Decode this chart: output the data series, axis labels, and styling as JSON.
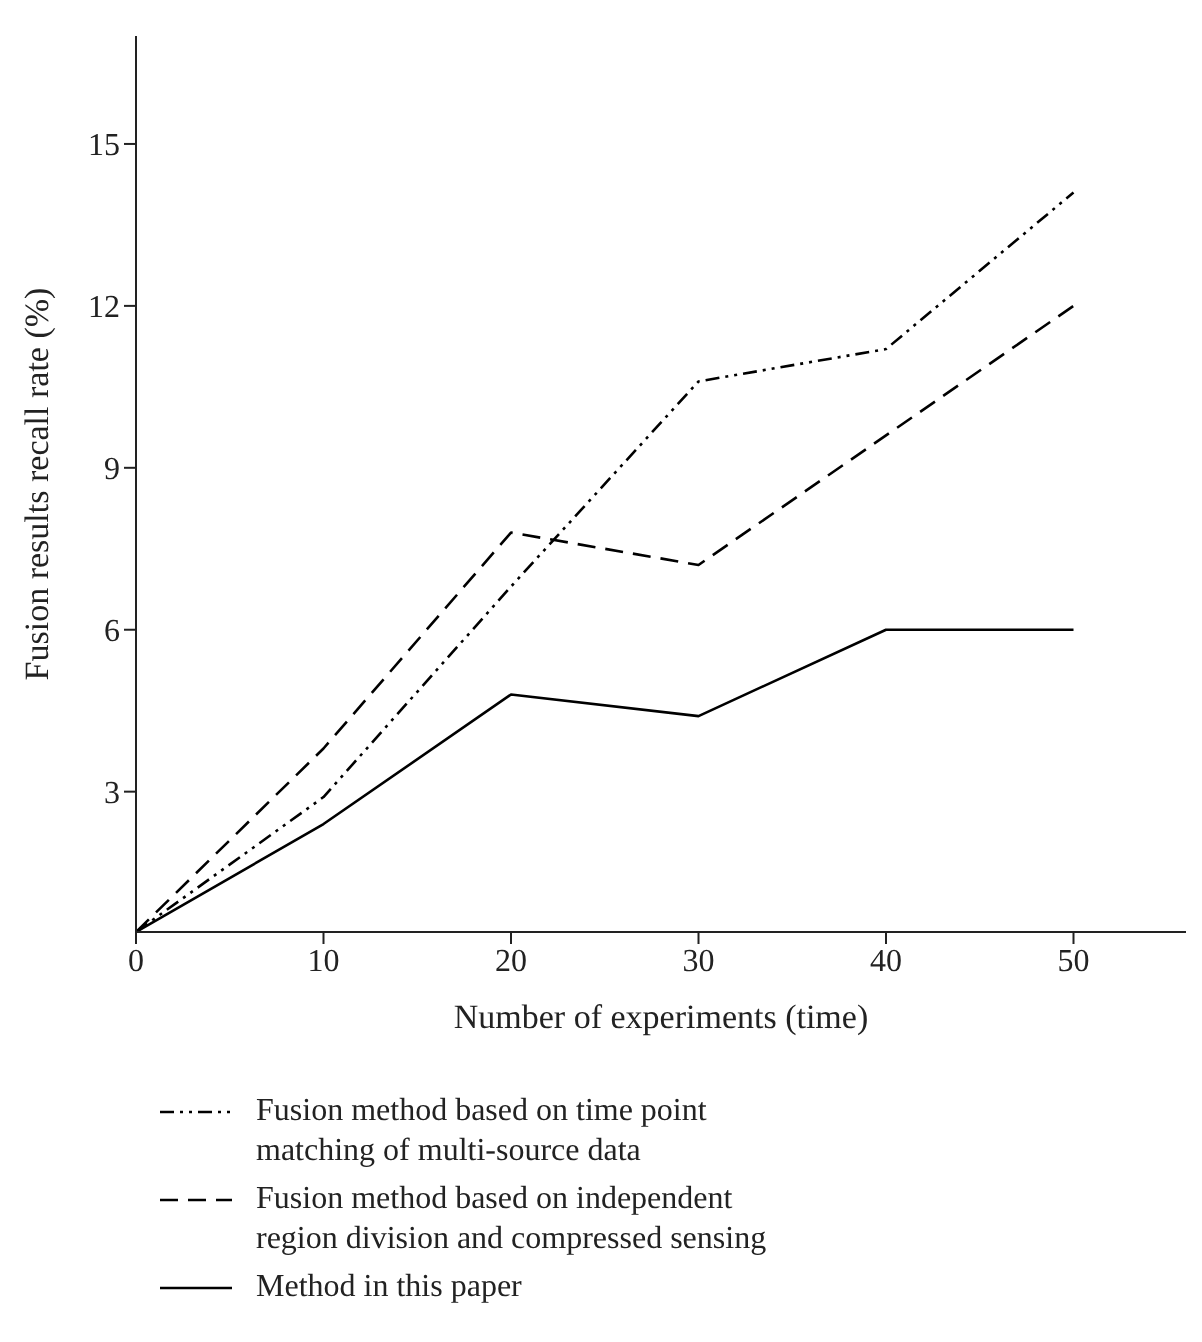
{
  "chart_data": {
    "type": "line",
    "xlabel": "Number of experiments (time)",
    "ylabel": "Fusion results recall rate (%)",
    "x": [
      0,
      10,
      20,
      30,
      40,
      50
    ],
    "series": [
      {
        "name": "Fusion method based on time point matching of multi-source data",
        "color": "#000000",
        "line_style": "dotted",
        "values": [
          0.4,
          2.9,
          6.8,
          10.6,
          11.2,
          14.1
        ]
      },
      {
        "name": "Fusion method based on independent region division and compressed sensing",
        "color": "#000000",
        "line_style": "dashed",
        "values": [
          0.4,
          3.8,
          7.8,
          7.2,
          9.6,
          12.0
        ]
      },
      {
        "name": "Method in this paper",
        "color": "#000000",
        "line_style": "solid",
        "values": [
          0.4,
          2.4,
          4.8,
          4.4,
          6.0,
          6.0
        ]
      }
    ],
    "xlim": [
      0,
      56
    ],
    "xticks": [
      0,
      10,
      20,
      30,
      40,
      50
    ],
    "ylim": [
      0.4,
      17
    ],
    "yticks": [
      3,
      6,
      9,
      12,
      15
    ],
    "grid": false,
    "legend": "bottom",
    "marker": "none"
  }
}
